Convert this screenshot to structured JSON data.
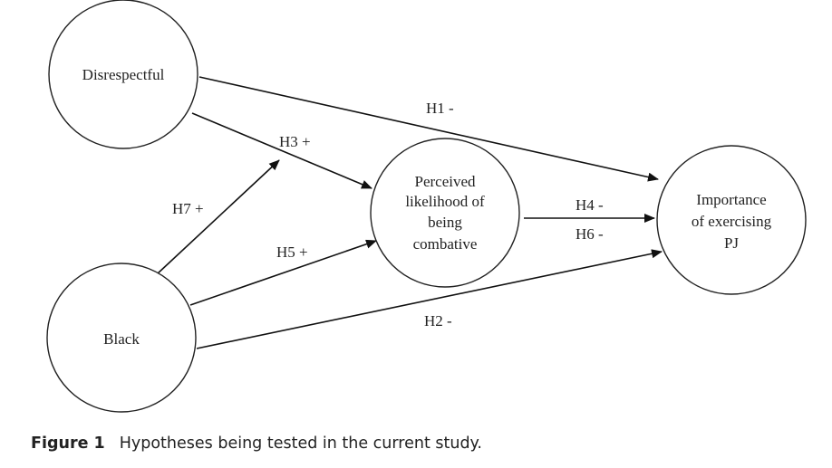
{
  "nodes": {
    "disrespectful": {
      "label": [
        "Disrespectful"
      ]
    },
    "black": {
      "label": [
        "Black"
      ]
    },
    "perceived": {
      "label": [
        "Perceived",
        "likelihood of",
        "being",
        "combative"
      ]
    },
    "importance": {
      "label": [
        "Importance",
        "of exercising",
        "PJ"
      ]
    }
  },
  "edges": [
    {
      "from": "disrespectful",
      "to": "importance",
      "label": "H1 -"
    },
    {
      "from": "black",
      "to": "importance",
      "label": "H2 -"
    },
    {
      "from": "disrespectful",
      "to": "perceived",
      "label": "H3 +"
    },
    {
      "from": "perceived",
      "to": "importance",
      "label": "H4 -"
    },
    {
      "from": "black",
      "to": "perceived",
      "label": "H5 +"
    },
    {
      "from": "perceived",
      "to": "importance",
      "label": "H6 -"
    },
    {
      "from": "black",
      "to": "disrespectful",
      "label": "H7 +"
    }
  ],
  "caption": {
    "figure_number": "Figure 1",
    "text": "Hypotheses being tested in the current study."
  }
}
